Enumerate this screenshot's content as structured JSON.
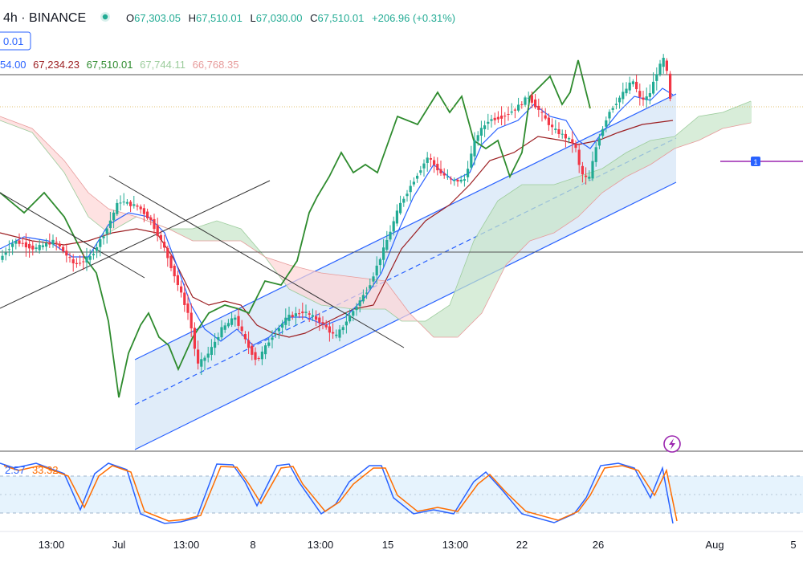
{
  "header": {
    "interval_exchange": "4h · BINANCE",
    "status_icon": "market-open-dot-icon",
    "ohlc": {
      "o_label": "O",
      "o_value": "67,303.05",
      "h_label": "H",
      "h_value": "67,510.01",
      "l_label": "L",
      "l_value": "67,030.00",
      "c_label": "C",
      "c_value": "67,510.01",
      "change": "+206.96 (+0.31%)"
    },
    "badge_value": "0.01",
    "ichimoku_values": [
      "54.00",
      "67,234.23",
      "67,510.01",
      "67,744.11",
      "66,768.35"
    ]
  },
  "stoch_values": [
    "2.57",
    "33.32"
  ],
  "x_axis_labels": [
    "13:00",
    "Jul",
    "13:00",
    "8",
    "13:00",
    "15",
    "13:00",
    "22",
    "26",
    "Aug",
    "5"
  ],
  "marker_label": "1",
  "colors": {
    "up": "#22ab94",
    "down": "#f23645",
    "tenkan": "#2962ff",
    "kijun": "#9c1f22",
    "chikou": "#2e8b2e",
    "cloud_up": "#c8e6c9",
    "cloud_down": "#fdd6d6",
    "stoch_k": "#2962ff",
    "stoch_d": "#ff6d00",
    "channel_fill": "#d6e6f7",
    "lightning": "#9c27b0"
  },
  "chart_data": {
    "type": "candlestick",
    "symbol_interval": "4h",
    "exchange": "BINANCE",
    "last_bar": {
      "open": 67303.05,
      "high": 67510.01,
      "low": 67030.0,
      "close": 67510.01,
      "change": 206.96,
      "change_pct": 0.31
    },
    "indicators": {
      "ichimoku": {
        "values": [
          67234.23,
          67510.01,
          67744.11,
          66768.35
        ]
      },
      "stochastic": {
        "k": 2.57,
        "d": 33.32
      }
    },
    "x_tick_labels": [
      "13:00",
      "Jul",
      "13:00",
      "8",
      "13:00",
      "15",
      "13:00",
      "22",
      "26",
      "Aug",
      "5"
    ],
    "grid": false
  }
}
